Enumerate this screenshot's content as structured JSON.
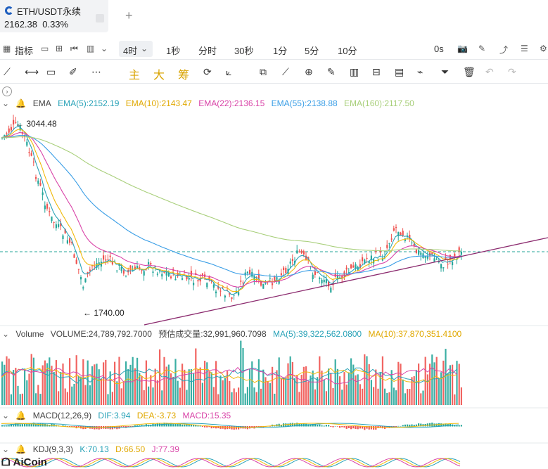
{
  "tab": {
    "title": "ETH/USDT永续",
    "price": "2162.38",
    "change": "0.33%"
  },
  "toolbar": {
    "indicator": "指标",
    "interval_selected": "4时",
    "intervals": [
      "1秒",
      "分时",
      "30秒",
      "1分",
      "5分",
      "10分"
    ],
    "countdown": "0s"
  },
  "draw_tools": {
    "main": "主",
    "big": "大",
    "chip": "筹"
  },
  "ema": {
    "name": "EMA",
    "values": [
      "EMA(5):2152.19",
      "EMA(10):2143.47",
      "EMA(22):2136.15",
      "EMA(55):2138.88",
      "EMA(160):2117.50"
    ],
    "colors": [
      "#2aa3b8",
      "#f0b90b",
      "#d944a8",
      "#3a9ee6",
      "#a8cf7a"
    ],
    "high_label": "3044.48",
    "low_label": "1740.00"
  },
  "volume": {
    "name": "Volume",
    "value": "VOLUME:24,789,792.7000",
    "estimate": "预估成交量:32,991,960.7098",
    "ma5": "MA(5):39,322,562.0800",
    "ma10": "MA(10):37,870,351.4100"
  },
  "macd": {
    "name": "MACD(12,26,9)",
    "dif": "DIF:3.94",
    "dea": "DEA:-3.73",
    "macd": "MACD:15.35"
  },
  "kdj": {
    "name": "KDJ(9,3,3)",
    "k": "K:70.13",
    "d": "D:66.50",
    "j": "J:77.39"
  },
  "logo": "AiCoin",
  "colors": {
    "up": "#26a69a",
    "down": "#ef5350",
    "trendline": "#8b2a6e",
    "current": "#26a69a"
  }
}
